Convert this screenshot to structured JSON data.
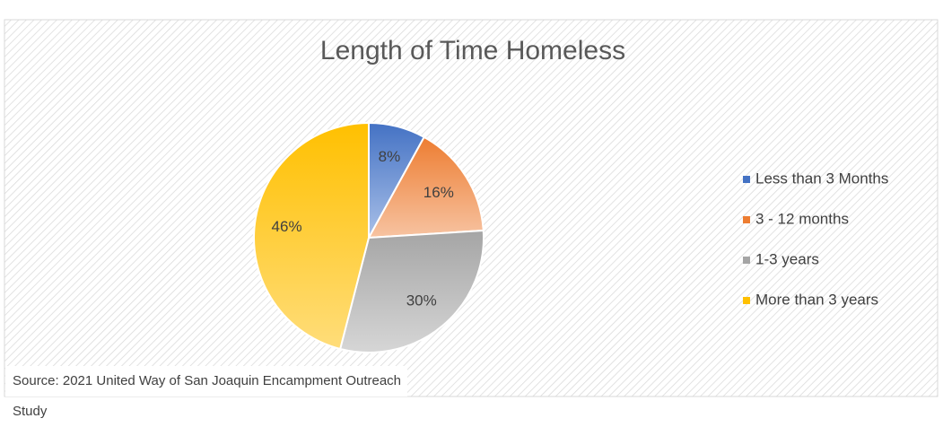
{
  "chart_data": {
    "type": "pie",
    "title": "Length of Time Homeless",
    "categories": [
      "Less than 3 Months",
      "3 - 12 months",
      "1-3 years",
      "More than 3 years"
    ],
    "values": [
      8,
      16,
      30,
      46
    ],
    "value_labels": [
      "8%",
      "16%",
      "30%",
      "46%"
    ],
    "colors": [
      "#4472c4",
      "#ed7d31",
      "#a5a5a5",
      "#ffc000"
    ],
    "legend": "right",
    "source": "Source: 2021 United Way of San Joaquin Encampment Outreach Study"
  }
}
